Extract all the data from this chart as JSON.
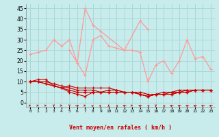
{
  "xlabel": "Vent moyen/en rafales ( km/h )",
  "x": [
    0,
    1,
    2,
    3,
    4,
    5,
    6,
    7,
    8,
    9,
    10,
    11,
    12,
    13,
    14,
    15,
    16,
    17,
    18,
    19,
    20,
    21,
    22,
    23
  ],
  "line1": [
    23,
    24,
    25,
    30,
    27,
    30,
    19,
    13,
    30,
    32,
    27,
    26,
    25,
    25,
    24,
    10,
    18,
    20,
    14,
    20,
    30,
    21,
    22,
    16
  ],
  "line2_x": [
    5,
    6,
    7,
    8,
    9,
    12,
    14,
    15
  ],
  "line2_y": [
    25,
    19,
    45,
    37,
    34,
    25,
    39,
    35
  ],
  "line3": [
    10,
    10,
    10,
    9,
    8,
    7,
    6,
    6,
    6,
    5,
    6,
    6,
    5,
    5,
    4,
    3,
    4,
    4,
    5,
    5,
    6,
    6,
    6,
    6
  ],
  "line4": [
    10,
    11,
    11,
    8,
    7,
    8,
    7,
    7,
    7,
    7,
    7,
    6,
    5,
    5,
    5,
    4,
    4,
    5,
    5,
    6,
    6,
    6,
    6,
    6
  ],
  "line5": [
    10,
    10,
    9,
    8,
    7,
    6,
    5,
    5,
    5,
    5,
    5,
    5,
    5,
    5,
    4,
    3,
    4,
    4,
    4,
    5,
    5,
    6,
    6,
    6
  ],
  "line6": [
    10,
    10,
    9,
    8,
    7,
    5,
    4,
    3,
    5,
    5,
    5,
    5,
    5,
    5,
    4,
    3,
    4,
    4,
    4,
    5,
    5,
    6,
    6,
    6
  ],
  "color_light": "#FF9999",
  "color_dark": "#CC0000",
  "background": "#C8EBEB",
  "grid_color": "#A8D8D8",
  "yticks": [
    0,
    5,
    10,
    15,
    20,
    25,
    30,
    35,
    40,
    45
  ],
  "ylim": [
    -2,
    47
  ],
  "xlim": [
    -0.5,
    23.5
  ]
}
